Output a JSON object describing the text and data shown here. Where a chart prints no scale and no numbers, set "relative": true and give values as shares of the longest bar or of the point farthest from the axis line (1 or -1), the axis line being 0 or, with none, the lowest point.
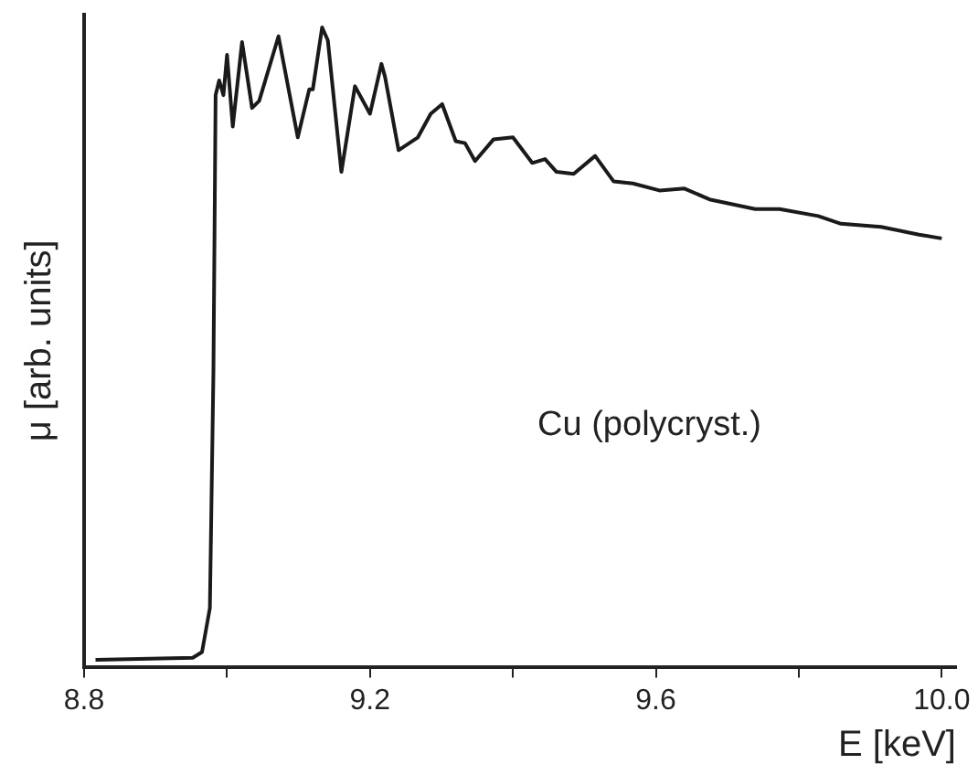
{
  "chart_data": {
    "type": "line",
    "relative": true,
    "xlabel": "E [keV]",
    "ylabel": "μ [arb. units]",
    "annotations": [
      "Cu (polycryst.)"
    ],
    "xlim": [
      8.8,
      10.02
    ],
    "xticks": [
      {
        "value": 8.8,
        "label": "8.8"
      },
      {
        "value": 9.0,
        "label": null
      },
      {
        "value": 9.2,
        "label": "9.2"
      },
      {
        "value": 9.4,
        "label": null
      },
      {
        "value": 9.6,
        "label": "9.6"
      },
      {
        "value": 9.8,
        "label": null
      },
      {
        "value": 10.0,
        "label": "10.0"
      }
    ],
    "grid": false,
    "legend": false,
    "marker": "none",
    "line_style": "solid",
    "series": [
      {
        "color": "#1a1a1a",
        "x": [
          8.816,
          8.952,
          8.965,
          8.976,
          8.981,
          8.984,
          8.989,
          8.995,
          9.0,
          9.008,
          9.021,
          9.035,
          9.045,
          9.072,
          9.099,
          9.115,
          9.12,
          9.133,
          9.141,
          9.16,
          9.179,
          9.2,
          9.216,
          9.221,
          9.24,
          9.267,
          9.285,
          9.301,
          9.32,
          9.333,
          9.347,
          9.373,
          9.4,
          9.427,
          9.445,
          9.461,
          9.485,
          9.515,
          9.541,
          9.568,
          9.605,
          9.64,
          9.675,
          9.739,
          9.773,
          9.827,
          9.859,
          9.915,
          9.968,
          10.0
        ],
        "values": [
          0.011,
          0.014,
          0.023,
          0.092,
          0.464,
          0.894,
          0.917,
          0.894,
          0.957,
          0.845,
          0.977,
          0.874,
          0.885,
          0.986,
          0.828,
          0.903,
          0.903,
          1.0,
          0.98,
          0.774,
          0.908,
          0.865,
          0.943,
          0.923,
          0.808,
          0.828,
          0.865,
          0.88,
          0.822,
          0.819,
          0.791,
          0.825,
          0.828,
          0.788,
          0.794,
          0.774,
          0.771,
          0.799,
          0.759,
          0.756,
          0.745,
          0.748,
          0.731,
          0.716,
          0.716,
          0.705,
          0.693,
          0.688,
          0.676,
          0.67
        ]
      }
    ]
  }
}
